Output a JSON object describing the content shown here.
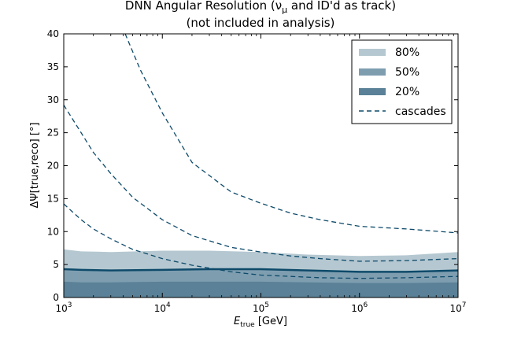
{
  "chart_data": {
    "type": "area",
    "title": "DNN Angular Resolution (νμ and ID'd as track)",
    "subtitle": "(not included in analysis)",
    "xlabel": "E_true [GeV]",
    "xlabel_main": "E",
    "xlabel_sub": "true",
    "xlabel_unit": " [GeV]",
    "ylabel": "ΔΨ[true,reco] [°]",
    "xscale": "log",
    "xlim": [
      1000,
      10000000
    ],
    "ylim": [
      0,
      40
    ],
    "x_ticks": [
      1000,
      10000,
      100000,
      1000000,
      10000000
    ],
    "x_tick_labels": [
      {
        "base": "10",
        "exp": "3"
      },
      {
        "base": "10",
        "exp": "4"
      },
      {
        "base": "10",
        "exp": "5"
      },
      {
        "base": "10",
        "exp": "6"
      },
      {
        "base": "10",
        "exp": "7"
      }
    ],
    "y_ticks": [
      0,
      5,
      10,
      15,
      20,
      25,
      30,
      35,
      40
    ],
    "y_tick_labels": [
      "0",
      "5",
      "10",
      "15",
      "20",
      "25",
      "30",
      "35",
      "40"
    ],
    "grid": false,
    "legend_position": "top-right",
    "bands": [
      {
        "name": "80%",
        "color": "#b5c8d1",
        "x": [
          1000,
          1500,
          3000,
          10000,
          30000,
          100000,
          300000,
          1000000,
          3000000,
          10000000
        ],
        "y_low": [
          0,
          0,
          0,
          0,
          0,
          0,
          0,
          0,
          0,
          0
        ],
        "y_high": [
          7.3,
          7.0,
          6.9,
          7.1,
          7.1,
          6.9,
          6.5,
          6.3,
          6.4,
          6.9
        ]
      },
      {
        "name": "50%",
        "color": "#7e9eb0",
        "x": [
          1000,
          1500,
          3000,
          10000,
          30000,
          100000,
          300000,
          1000000,
          3000000,
          10000000
        ],
        "y_low": [
          0,
          0,
          0,
          0,
          0,
          0,
          0,
          0,
          0,
          0
        ],
        "y_high": [
          4.3,
          4.2,
          4.1,
          4.2,
          4.3,
          4.3,
          4.1,
          3.9,
          3.9,
          4.1
        ]
      },
      {
        "name": "20%",
        "color": "#5a8197",
        "x": [
          1000,
          1500,
          3000,
          10000,
          30000,
          100000,
          300000,
          1000000,
          3000000,
          10000000
        ],
        "y_low": [
          0,
          0,
          0,
          0,
          0,
          0,
          0,
          0,
          0,
          0
        ],
        "y_high": [
          2.4,
          2.3,
          2.3,
          2.4,
          2.4,
          2.4,
          2.3,
          2.2,
          2.2,
          2.3
        ]
      }
    ],
    "median_line": {
      "color": "#0e4a6a",
      "x": [
        1000,
        1500,
        3000,
        10000,
        30000,
        100000,
        300000,
        1000000,
        3000000,
        10000000
      ],
      "y": [
        4.3,
        4.2,
        4.1,
        4.2,
        4.3,
        4.3,
        4.1,
        3.9,
        3.9,
        4.1
      ]
    },
    "cascades": {
      "name": "cascades",
      "color": "#0e4a6a",
      "series": [
        {
          "x": [
            4200,
            6000,
            10000,
            20000,
            50000,
            100000,
            200000,
            400000,
            1000000,
            3000000,
            10000000
          ],
          "y": [
            40,
            34.5,
            28,
            20.5,
            16,
            14.3,
            12.8,
            11.8,
            10.8,
            10.4,
            9.8
          ]
        },
        {
          "x": [
            1000,
            1500,
            2000,
            3000,
            5000,
            10000,
            20000,
            50000,
            100000,
            200000,
            400000,
            1000000,
            3000000,
            10000000
          ],
          "y": [
            29.2,
            25,
            22,
            18.8,
            15.2,
            11.8,
            9.4,
            7.6,
            6.9,
            6.3,
            5.9,
            5.5,
            5.6,
            5.9
          ]
        },
        {
          "x": [
            1000,
            1500,
            2000,
            3000,
            5000,
            10000,
            20000,
            50000,
            100000,
            200000,
            400000,
            1000000,
            3000000,
            10000000
          ],
          "y": [
            14.2,
            11.8,
            10.4,
            8.9,
            7.3,
            5.9,
            4.9,
            3.9,
            3.4,
            3.2,
            3.0,
            2.9,
            3.0,
            3.2
          ]
        }
      ]
    },
    "legend": [
      {
        "label": "80%",
        "kind": "band",
        "color": "#b5c8d1"
      },
      {
        "label": "50%",
        "kind": "band",
        "color": "#7e9eb0"
      },
      {
        "label": "20%",
        "kind": "band",
        "color": "#5a8197"
      },
      {
        "label": "cascades",
        "kind": "dashed",
        "color": "#0e4a6a"
      }
    ]
  }
}
